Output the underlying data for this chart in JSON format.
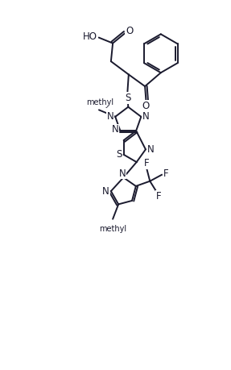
{
  "bg_color": "#ffffff",
  "line_color": "#1a1a2e",
  "line_width": 1.4,
  "font_size": 8.5,
  "xlim": [
    0,
    10
  ],
  "ylim": [
    0,
    16
  ]
}
